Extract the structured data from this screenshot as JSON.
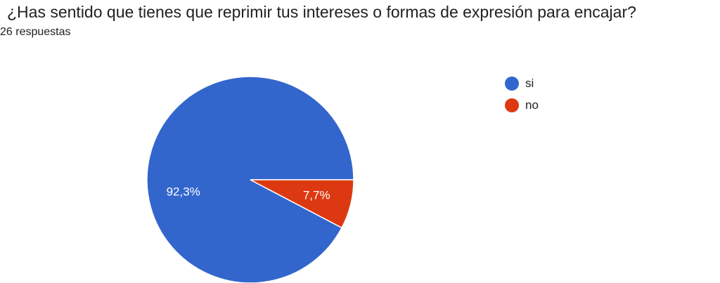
{
  "question": {
    "title": "¿Has sentido que tienes que reprimir tus intereses o formas de expresión para encajar?",
    "response_count": "26 respuestas"
  },
  "chart_data": {
    "type": "pie",
    "categories": [
      "si",
      "no"
    ],
    "values": [
      92.3,
      7.7
    ],
    "data_labels": [
      "92,3%",
      "7,7%"
    ],
    "colors": [
      "#3366cc",
      "#dc3912"
    ],
    "legend_position": "right"
  }
}
